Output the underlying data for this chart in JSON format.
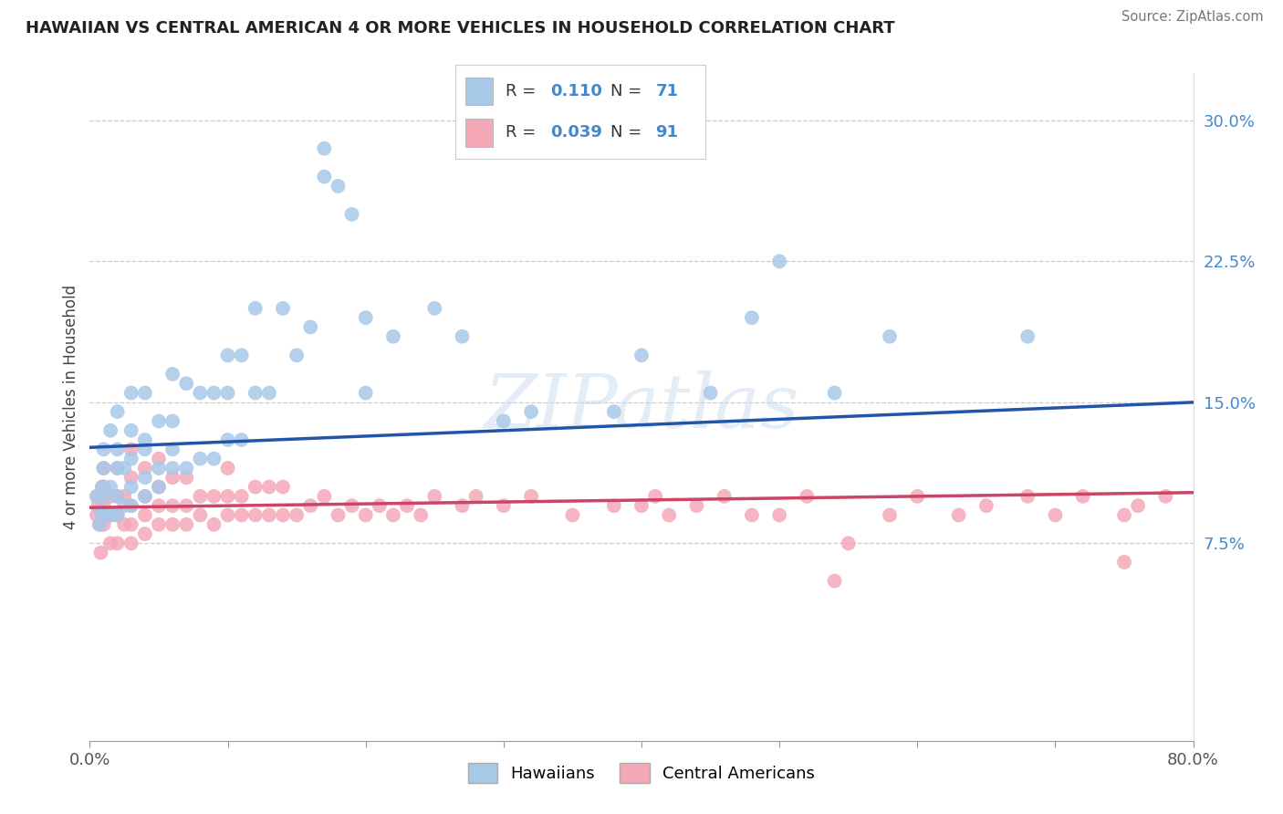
{
  "title": "HAWAIIAN VS CENTRAL AMERICAN 4 OR MORE VEHICLES IN HOUSEHOLD CORRELATION CHART",
  "source": "Source: ZipAtlas.com",
  "ylabel_label": "4 or more Vehicles in Household",
  "x_min": 0.0,
  "x_max": 0.8,
  "y_min": -0.03,
  "y_max": 0.325,
  "y_tick_positions": [
    0.075,
    0.15,
    0.225,
    0.3
  ],
  "y_tick_labels": [
    "7.5%",
    "15.0%",
    "22.5%",
    "30.0%"
  ],
  "grid_color": "#cccccc",
  "background_color": "#ffffff",
  "hawaiian_color": "#a8c8e8",
  "central_american_color": "#f4a8b8",
  "hawaiian_line_color": "#2255aa",
  "central_american_line_color": "#cc4466",
  "R_hawaiian": 0.11,
  "N_hawaiian": 71,
  "R_central": 0.039,
  "N_central": 91,
  "watermark": "ZIPatlas",
  "legend_label_hawaiian": "Hawaiians",
  "legend_label_central": "Central Americans",
  "haw_line_x0": 0.0,
  "haw_line_y0": 0.126,
  "haw_line_x1": 0.8,
  "haw_line_y1": 0.15,
  "cen_line_x0": 0.0,
  "cen_line_y0": 0.094,
  "cen_line_x1": 0.8,
  "cen_line_y1": 0.102,
  "hawaiian_x": [
    0.005,
    0.007,
    0.008,
    0.009,
    0.01,
    0.01,
    0.01,
    0.01,
    0.015,
    0.015,
    0.015,
    0.02,
    0.02,
    0.02,
    0.02,
    0.02,
    0.025,
    0.025,
    0.03,
    0.03,
    0.03,
    0.03,
    0.03,
    0.04,
    0.04,
    0.04,
    0.04,
    0.04,
    0.05,
    0.05,
    0.05,
    0.06,
    0.06,
    0.06,
    0.06,
    0.07,
    0.07,
    0.08,
    0.08,
    0.09,
    0.09,
    0.1,
    0.1,
    0.1,
    0.11,
    0.11,
    0.12,
    0.12,
    0.13,
    0.14,
    0.15,
    0.16,
    0.17,
    0.17,
    0.18,
    0.19,
    0.2,
    0.2,
    0.22,
    0.25,
    0.27,
    0.3,
    0.32,
    0.38,
    0.4,
    0.45,
    0.48,
    0.5,
    0.54,
    0.58,
    0.68
  ],
  "hawaiian_y": [
    0.1,
    0.085,
    0.092,
    0.105,
    0.09,
    0.1,
    0.115,
    0.125,
    0.09,
    0.105,
    0.135,
    0.09,
    0.1,
    0.115,
    0.125,
    0.145,
    0.095,
    0.115,
    0.095,
    0.105,
    0.12,
    0.135,
    0.155,
    0.1,
    0.11,
    0.125,
    0.13,
    0.155,
    0.105,
    0.115,
    0.14,
    0.115,
    0.125,
    0.14,
    0.165,
    0.115,
    0.16,
    0.12,
    0.155,
    0.12,
    0.155,
    0.13,
    0.155,
    0.175,
    0.13,
    0.175,
    0.155,
    0.2,
    0.155,
    0.2,
    0.175,
    0.19,
    0.27,
    0.285,
    0.265,
    0.25,
    0.155,
    0.195,
    0.185,
    0.2,
    0.185,
    0.14,
    0.145,
    0.145,
    0.175,
    0.155,
    0.195,
    0.225,
    0.155,
    0.185,
    0.185
  ],
  "central_x": [
    0.005,
    0.005,
    0.006,
    0.007,
    0.008,
    0.009,
    0.01,
    0.01,
    0.01,
    0.01,
    0.015,
    0.015,
    0.015,
    0.02,
    0.02,
    0.02,
    0.02,
    0.025,
    0.025,
    0.03,
    0.03,
    0.03,
    0.03,
    0.03,
    0.04,
    0.04,
    0.04,
    0.04,
    0.05,
    0.05,
    0.05,
    0.05,
    0.06,
    0.06,
    0.06,
    0.07,
    0.07,
    0.07,
    0.08,
    0.08,
    0.09,
    0.09,
    0.1,
    0.1,
    0.1,
    0.11,
    0.11,
    0.12,
    0.12,
    0.13,
    0.13,
    0.14,
    0.14,
    0.15,
    0.16,
    0.17,
    0.18,
    0.19,
    0.2,
    0.21,
    0.22,
    0.23,
    0.24,
    0.25,
    0.27,
    0.28,
    0.3,
    0.32,
    0.35,
    0.38,
    0.4,
    0.41,
    0.42,
    0.44,
    0.46,
    0.48,
    0.5,
    0.52,
    0.54,
    0.55,
    0.58,
    0.6,
    0.63,
    0.65,
    0.68,
    0.7,
    0.72,
    0.75,
    0.76,
    0.78,
    0.75
  ],
  "central_y": [
    0.09,
    0.1,
    0.095,
    0.085,
    0.07,
    0.105,
    0.085,
    0.095,
    0.105,
    0.115,
    0.075,
    0.09,
    0.1,
    0.075,
    0.09,
    0.1,
    0.115,
    0.085,
    0.1,
    0.075,
    0.085,
    0.095,
    0.11,
    0.125,
    0.08,
    0.09,
    0.1,
    0.115,
    0.085,
    0.095,
    0.105,
    0.12,
    0.085,
    0.095,
    0.11,
    0.085,
    0.095,
    0.11,
    0.09,
    0.1,
    0.085,
    0.1,
    0.09,
    0.1,
    0.115,
    0.09,
    0.1,
    0.09,
    0.105,
    0.09,
    0.105,
    0.09,
    0.105,
    0.09,
    0.095,
    0.1,
    0.09,
    0.095,
    0.09,
    0.095,
    0.09,
    0.095,
    0.09,
    0.1,
    0.095,
    0.1,
    0.095,
    0.1,
    0.09,
    0.095,
    0.095,
    0.1,
    0.09,
    0.095,
    0.1,
    0.09,
    0.09,
    0.1,
    0.055,
    0.075,
    0.09,
    0.1,
    0.09,
    0.095,
    0.1,
    0.09,
    0.1,
    0.09,
    0.095,
    0.1,
    0.065
  ]
}
